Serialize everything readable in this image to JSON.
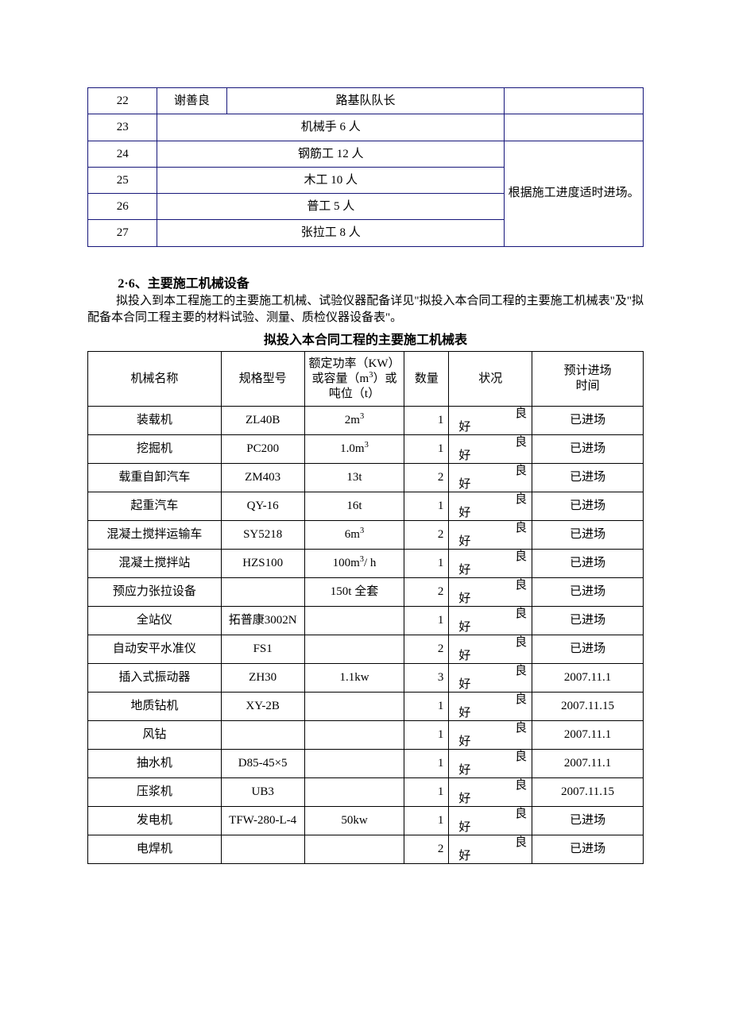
{
  "personnel": {
    "border_color": "#16167a",
    "rows": [
      {
        "idx": "22",
        "name": "谢善良",
        "role": "路基队队长",
        "remark": ""
      },
      {
        "idx": "23",
        "role_merged": "机械手 6 人",
        "remark": ""
      },
      {
        "idx": "24",
        "role_merged": "钢筋工 12 人"
      },
      {
        "idx": "25",
        "role_merged": "木工 10 人"
      },
      {
        "idx": "26",
        "role_merged": "普工 5 人"
      },
      {
        "idx": "27",
        "role_merged": "张拉工 8 人"
      }
    ],
    "remarks_merged": "根据施工进度适时进场。"
  },
  "section": {
    "heading": "2·6、主要施工机械设备",
    "para": "拟投入到本工程施工的主要施工机械、试验仪器配备详见\"拟投入本合同工程的主要施工机械表\"及\"拟配备本合同工程主要的材料试验、测量、质检仪器设备表\"。",
    "table_title": "拟投入本合同工程的主要施工机械表"
  },
  "machinery": {
    "border_color": "#000000",
    "columns": {
      "name": "机械名称",
      "model": "规格型号",
      "spec": "额定功率（KW）或容量（m³）或吨位（t）",
      "qty": "数量",
      "status": "状况",
      "time": "预计进场\n时间"
    },
    "rows": [
      {
        "name": "装载机",
        "model": "ZL40B",
        "spec": "2m³",
        "qty": "1",
        "status": "良好",
        "time": "已进场"
      },
      {
        "name": "挖掘机",
        "model": "PC200",
        "spec": "1.0m³",
        "qty": "1",
        "status": "良好",
        "time": "已进场"
      },
      {
        "name": "载重自卸汽车",
        "model": "ZM403",
        "spec": "13t",
        "qty": "2",
        "status": "良好",
        "time": "已进场"
      },
      {
        "name": "起重汽车",
        "model": "QY-16",
        "spec": "16t",
        "qty": "1",
        "status": "良好",
        "time": "已进场"
      },
      {
        "name": "混凝土搅拌运输车",
        "model": "SY5218",
        "spec": "6m³",
        "qty": "2",
        "status": "良好",
        "time": "已进场"
      },
      {
        "name": "混凝土搅拌站",
        "model": "HZS100",
        "spec": "100m³/ h",
        "qty": "1",
        "status": "良好",
        "time": "已进场"
      },
      {
        "name": "预应力张拉设备",
        "model": "",
        "spec": "150t 全套",
        "qty": "2",
        "status": "良好",
        "time": "已进场"
      },
      {
        "name": "全站仪",
        "model": "拓普康3002N",
        "spec": "",
        "qty": "1",
        "status": "良好",
        "time": "已进场"
      },
      {
        "name": "自动安平水准仪",
        "model": "FS1",
        "spec": "",
        "qty": "2",
        "status": "良好",
        "time": "已进场"
      },
      {
        "name": "插入式振动器",
        "model": "ZH30",
        "spec": "1.1kw",
        "qty": "3",
        "status": "良好",
        "time": "2007.11.1"
      },
      {
        "name": "地质钻机",
        "model": "XY-2B",
        "spec": "",
        "qty": "1",
        "status": "良好",
        "time": "2007.11.15"
      },
      {
        "name": "风钻",
        "model": "",
        "spec": "",
        "qty": "1",
        "status": "良好",
        "time": "2007.11.1"
      },
      {
        "name": "抽水机",
        "model": "D85-45×5",
        "spec": "",
        "qty": "1",
        "status": "良好",
        "time": "2007.11.1"
      },
      {
        "name": "压浆机",
        "model": "UB3",
        "spec": "",
        "qty": "1",
        "status": "良好",
        "time": "2007.11.15"
      },
      {
        "name": "发电机",
        "model": "TFW-280-L-4",
        "spec": "50kw",
        "qty": "1",
        "status": "良好",
        "time": "已进场"
      },
      {
        "name": "电焊机",
        "model": "",
        "spec": "",
        "qty": "2",
        "status": "良好",
        "time": "已进场"
      }
    ]
  }
}
